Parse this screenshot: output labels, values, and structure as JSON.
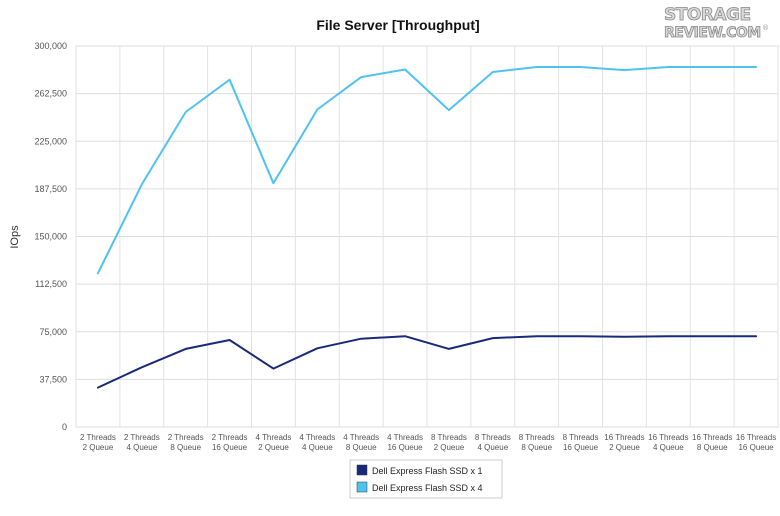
{
  "chart_data": {
    "type": "line",
    "title": "File Server [Throughput]",
    "ylabel": "IOps",
    "xlabel": "",
    "ylim": [
      0,
      300000
    ],
    "yticks": [
      0,
      37500,
      75000,
      112500,
      150000,
      187500,
      225000,
      262500,
      300000
    ],
    "ytick_labels": [
      "0",
      "37,500",
      "75,000",
      "112,500",
      "150,000",
      "187,500",
      "225,000",
      "262,500",
      "300,000"
    ],
    "grid": true,
    "legend_position": "bottom-center",
    "categories": [
      [
        "2 Threads",
        "2 Queue"
      ],
      [
        "2 Threads",
        "4 Queue"
      ],
      [
        "2 Threads",
        "8 Queue"
      ],
      [
        "2 Threads",
        "16 Queue"
      ],
      [
        "4 Threads",
        "2 Queue"
      ],
      [
        "4 Threads",
        "4 Queue"
      ],
      [
        "4 Threads",
        "8 Queue"
      ],
      [
        "4 Threads",
        "16 Queue"
      ],
      [
        "8 Threads",
        "2 Queue"
      ],
      [
        "8 Threads",
        "4 Queue"
      ],
      [
        "8 Threads",
        "8 Queue"
      ],
      [
        "8 Threads",
        "16 Queue"
      ],
      [
        "16 Threads",
        "2 Queue"
      ],
      [
        "16 Threads",
        "4 Queue"
      ],
      [
        "16 Threads",
        "8 Queue"
      ],
      [
        "16 Threads",
        "16 Queue"
      ]
    ],
    "series": [
      {
        "name": "Dell Express Flash SSD x 1",
        "color": "#1a2a7a",
        "values": [
          31000,
          47000,
          61500,
          68500,
          46000,
          62000,
          69500,
          71500,
          61500,
          70000,
          71500,
          71500,
          71000,
          71500,
          71500,
          71500
        ]
      },
      {
        "name": "Dell Express Flash SSD x 4",
        "color": "#4fc3f0",
        "values": [
          121000,
          191000,
          248000,
          273500,
          192000,
          250000,
          275500,
          281500,
          249500,
          279500,
          283500,
          283500,
          281000,
          283500,
          283500,
          283500
        ]
      }
    ]
  },
  "watermark": {
    "line1": "STORAGE",
    "line2": "REVIEW.COM",
    "mark": "®"
  }
}
